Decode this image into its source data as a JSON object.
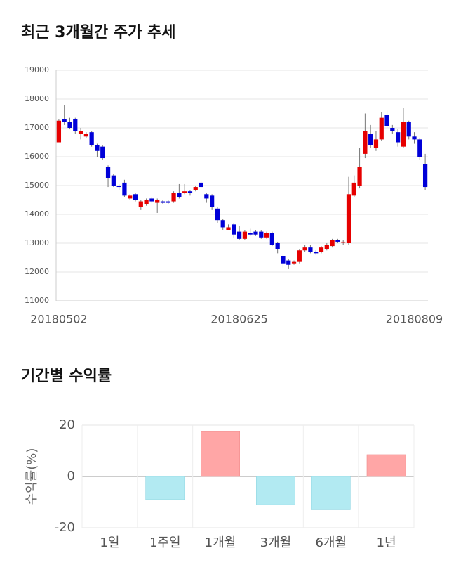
{
  "chart_data": [
    {
      "type": "candlestick",
      "title": "최근 3개월간 주가 추세",
      "categories": [
        "20180502",
        null,
        null,
        null,
        null,
        null,
        null,
        null,
        null,
        null,
        null,
        null,
        null,
        null,
        null,
        null,
        null,
        null,
        null,
        null,
        null,
        null,
        null,
        null,
        null,
        null,
        null,
        null,
        null,
        null,
        null,
        null,
        null,
        "20180625",
        null,
        null,
        null,
        null,
        null,
        null,
        null,
        null,
        null,
        null,
        null,
        null,
        null,
        null,
        null,
        null,
        null,
        null,
        null,
        null,
        null,
        null,
        null,
        null,
        null,
        null,
        null,
        null,
        null,
        null,
        null,
        "20180809",
        null,
        null
      ],
      "open": [
        16500,
        17300,
        17200,
        17300,
        16800,
        16700,
        16850,
        16400,
        16350,
        15650,
        15350,
        15000,
        15100,
        14550,
        14700,
        14250,
        14350,
        14550,
        14400,
        14450,
        14450,
        14450,
        14750,
        14750,
        14800,
        14850,
        15100,
        14700,
        14650,
        14200,
        13800,
        13450,
        13650,
        13400,
        13150,
        13350,
        13400,
        13400,
        13200,
        13350,
        13000,
        12550,
        12400,
        12300,
        12350,
        12750,
        12850,
        12700,
        12700,
        12800,
        12900,
        13100,
        13050,
        13000,
        14650,
        15000,
        16100,
        16800,
        16300,
        16600,
        17450,
        17000,
        16850,
        16350,
        17200,
        16700,
        16600,
        15750
      ],
      "high": [
        17300,
        17800,
        17350,
        17350,
        17000,
        16850,
        16900,
        16450,
        16400,
        15700,
        15400,
        15050,
        15200,
        14700,
        14750,
        14500,
        14550,
        14600,
        14550,
        14500,
        14500,
        14800,
        15050,
        15050,
        14850,
        15000,
        15150,
        14750,
        14700,
        14250,
        13850,
        13650,
        13700,
        13600,
        13450,
        13500,
        13450,
        13450,
        13400,
        13400,
        13050,
        12600,
        12450,
        12400,
        12800,
        12950,
        12950,
        12750,
        12900,
        13000,
        13150,
        13150,
        13100,
        15300,
        15350,
        16300,
        17500,
        17100,
        16900,
        17550,
        17600,
        17100,
        16950,
        17700,
        17250,
        16850,
        16650,
        16100
      ],
      "low": [
        16500,
        17100,
        16950,
        16800,
        16600,
        16650,
        16350,
        16000,
        15900,
        14950,
        14950,
        14850,
        14600,
        14500,
        14450,
        14150,
        14300,
        14400,
        14050,
        14350,
        14350,
        14400,
        14550,
        14700,
        14650,
        14800,
        14900,
        14400,
        14150,
        13700,
        13450,
        13450,
        13200,
        13100,
        13100,
        13250,
        13250,
        13150,
        13150,
        12900,
        12650,
        12150,
        12100,
        12250,
        12300,
        12700,
        12650,
        12600,
        12650,
        12750,
        12850,
        13000,
        12950,
        12950,
        14600,
        14900,
        15950,
        16300,
        16200,
        16550,
        17000,
        16800,
        16350,
        16300,
        16600,
        16450,
        15900,
        14850
      ],
      "close": [
        17250,
        17200,
        17000,
        16900,
        16900,
        16800,
        16400,
        16200,
        15950,
        15250,
        15000,
        14950,
        14650,
        14650,
        14500,
        14450,
        14500,
        14450,
        14500,
        14400,
        14400,
        14750,
        14600,
        14800,
        14750,
        14950,
        14950,
        14550,
        14250,
        13800,
        13550,
        13550,
        13300,
        13150,
        13400,
        13300,
        13300,
        13200,
        13350,
        12950,
        12800,
        12300,
        12250,
        12350,
        12750,
        12850,
        12700,
        12650,
        12850,
        12950,
        13100,
        13050,
        13050,
        14700,
        15100,
        15650,
        16900,
        16400,
        16600,
        17350,
        17050,
        16900,
        16500,
        17200,
        16700,
        16600,
        16000,
        14950
      ],
      "up_color": "#e60000",
      "down_color": "#0000d8",
      "ylim": [
        11000,
        19000
      ],
      "yticks": [
        11000,
        12000,
        13000,
        14000,
        15000,
        16000,
        17000,
        18000,
        19000
      ],
      "grid": true
    },
    {
      "type": "bar",
      "title": "기간별 수익률",
      "ylabel": "수익률(%)",
      "categories": [
        "1일",
        "1주일",
        "1개월",
        "3개월",
        "6개월",
        "1년"
      ],
      "values": [
        0,
        -9,
        17.5,
        -11,
        -13,
        8.5
      ],
      "positive_color": "#ffa6a6",
      "negative_color": "#b2eaf2",
      "ylim": [
        -20,
        20
      ],
      "yticks": [
        -20,
        0,
        20
      ],
      "grid": true
    }
  ]
}
